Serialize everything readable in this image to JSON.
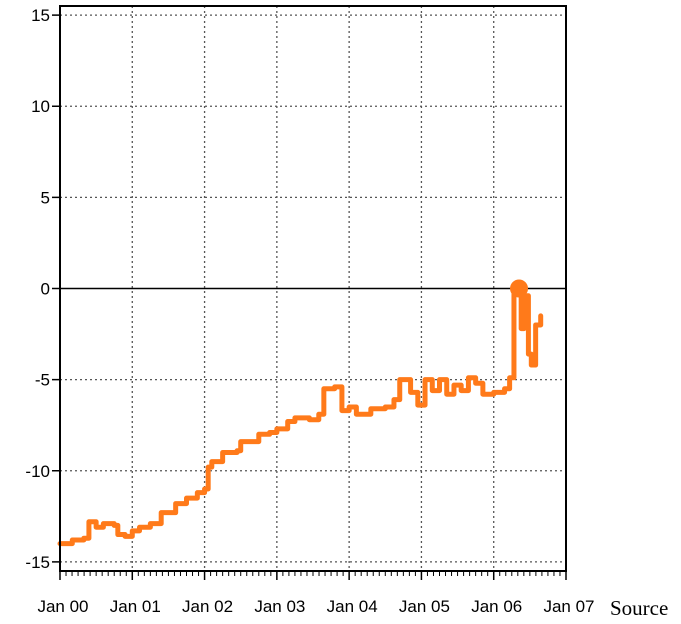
{
  "source_text": "Source",
  "chart_data": {
    "type": "line",
    "title": "",
    "xlabel": "",
    "ylabel": "",
    "ylim": [
      -15.5,
      15.5
    ],
    "xlim": [
      2000.0,
      2007.0
    ],
    "y_ticks": [
      15,
      10,
      5,
      0,
      -5,
      -10,
      -15
    ],
    "x_ticks": [
      {
        "x": 2000,
        "label": "Jan 00"
      },
      {
        "x": 2001,
        "label": "Jan 01"
      },
      {
        "x": 2002,
        "label": "Jan 02"
      },
      {
        "x": 2003,
        "label": "Jan 03"
      },
      {
        "x": 2004,
        "label": "Jan 04"
      },
      {
        "x": 2005,
        "label": "Jan 05"
      },
      {
        "x": 2006,
        "label": "Jan 06"
      },
      {
        "x": 2007,
        "label": "Jan 07"
      }
    ],
    "zero_line": 0,
    "grid": true,
    "line_color": "#ff7a1a",
    "series": [
      {
        "x": [
          2000.0,
          2000.17,
          2000.33,
          2000.4,
          2000.5,
          2000.6,
          2000.75,
          2000.8,
          2000.9,
          2001.0,
          2001.1,
          2001.25,
          2001.4,
          2001.6,
          2001.75,
          2001.9,
          2002.0,
          2002.05,
          2002.1,
          2002.25,
          2002.45,
          2002.5,
          2002.75,
          2002.9,
          2003.0,
          2003.15,
          2003.25,
          2003.45,
          2003.58,
          2003.65,
          2003.8,
          2003.9,
          2004.0,
          2004.1,
          2004.3,
          2004.5,
          2004.62,
          2004.7,
          2004.85,
          2004.95,
          2005.05,
          2005.15,
          2005.25,
          2005.35,
          2005.45,
          2005.55,
          2005.65,
          2005.75,
          2005.85,
          2006.0,
          2006.15,
          2006.22,
          2006.28,
          2006.32,
          2006.38,
          2006.42,
          2006.48,
          2006.52,
          2006.58,
          2006.65
        ],
        "y": [
          -14.0,
          -13.8,
          -13.7,
          -12.8,
          -13.1,
          -12.9,
          -13.0,
          -13.5,
          -13.6,
          -13.3,
          -13.1,
          -12.9,
          -12.3,
          -11.8,
          -11.5,
          -11.2,
          -11.0,
          -9.8,
          -9.5,
          -9.0,
          -8.9,
          -8.4,
          -8.0,
          -7.9,
          -7.7,
          -7.3,
          -7.1,
          -7.2,
          -6.9,
          -5.5,
          -5.4,
          -6.7,
          -6.5,
          -6.9,
          -6.6,
          -6.5,
          -6.1,
          -5.0,
          -5.7,
          -6.4,
          -5.0,
          -5.6,
          -5.0,
          -5.8,
          -5.3,
          -5.6,
          -4.9,
          -5.2,
          -5.8,
          -5.7,
          -5.5,
          -4.9,
          -0.3,
          -0.2,
          -2.2,
          -0.4,
          -3.6,
          -4.2,
          -2.0,
          -1.5
        ]
      }
    ],
    "markers": [
      {
        "x": 2006.35,
        "y": 0.0
      }
    ]
  }
}
